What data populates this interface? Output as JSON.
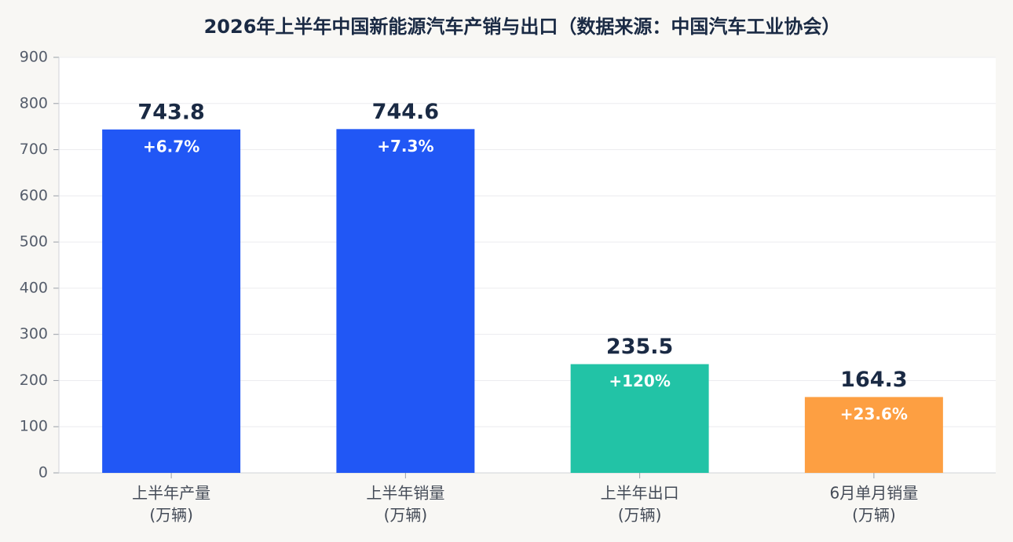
{
  "chart_data": {
    "type": "bar",
    "title": "2026年上半年中国新能源汽车产销与出口（数据来源：中国汽车工业协会）",
    "categories": [
      [
        "上半年产量",
        "(万辆)"
      ],
      [
        "上半年销量",
        "(万辆)"
      ],
      [
        "上半年出口",
        "(万辆)"
      ],
      [
        "6月单月销量",
        "(万辆)"
      ]
    ],
    "values": [
      743.8,
      744.6,
      235.5,
      164.3
    ],
    "colors": [
      "#2157f5",
      "#2157f5",
      "#22c3a6",
      "#fd9f42"
    ],
    "growth": [
      {
        "value": 6.7,
        "label": "+6.7%"
      },
      {
        "value": 7.3,
        "label": "+7.3%"
      },
      {
        "value": 120,
        "label": "+120%"
      },
      {
        "value": 23.6,
        "label": "+23.6%"
      }
    ],
    "ylim": [
      0,
      900
    ],
    "yticks": [
      0,
      100,
      200,
      300,
      400,
      500,
      600,
      700,
      800,
      900
    ],
    "grid": true
  }
}
